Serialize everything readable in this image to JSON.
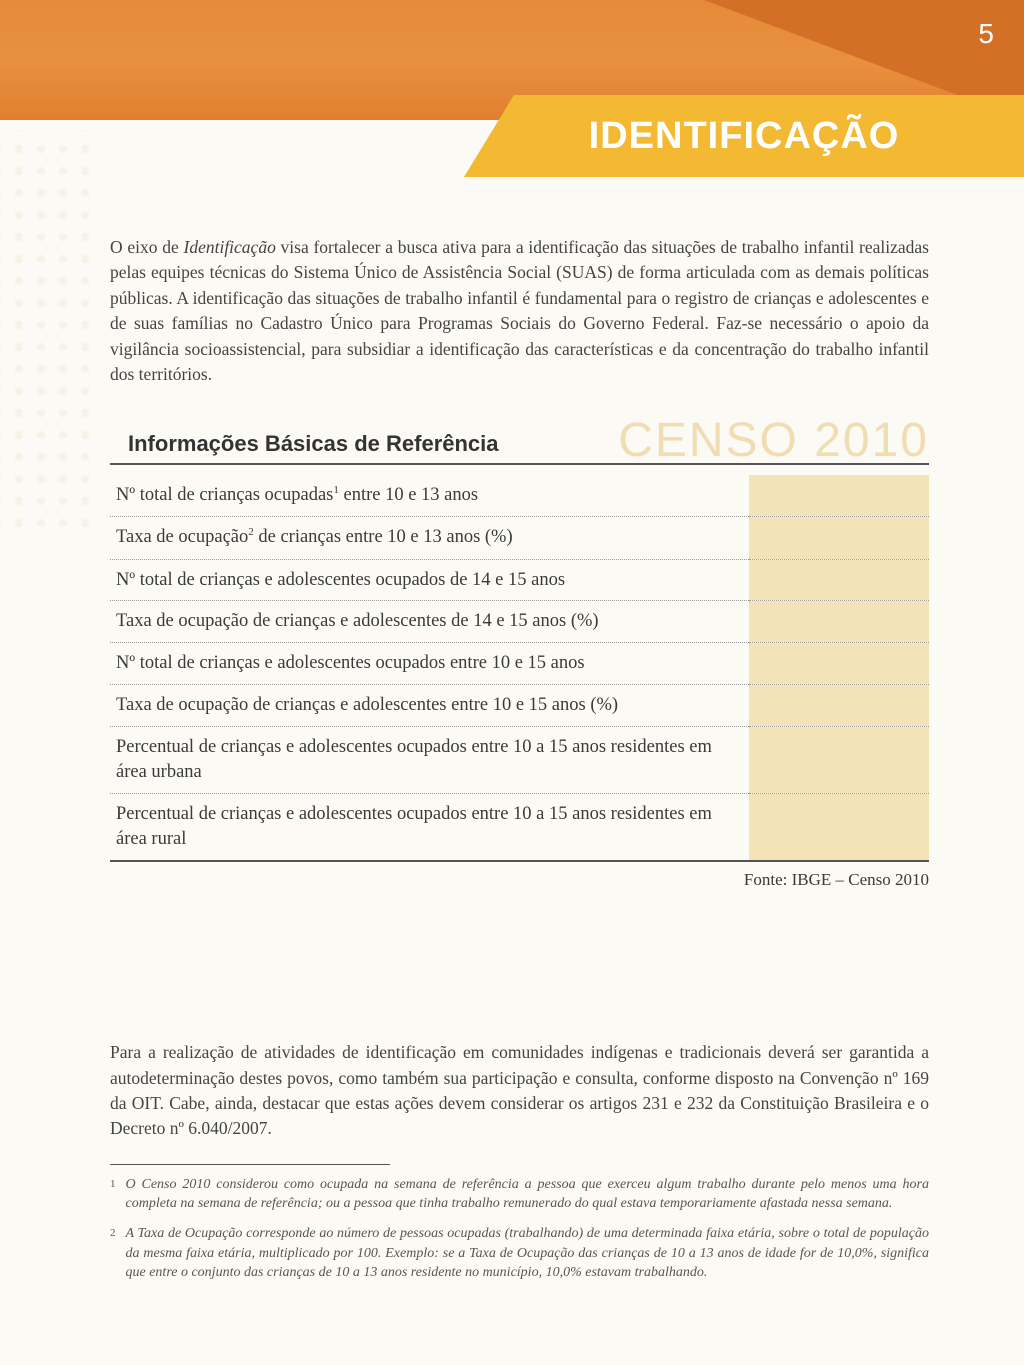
{
  "page_number": "5",
  "header": {
    "title": "IDENTIFICAÇÃO",
    "bg_color": "#e58a3a",
    "triangle_color": "#d46f28",
    "banner_color": "#f3b933",
    "title_color": "#ffffff"
  },
  "intro": {
    "text_pre_italic": "O eixo de ",
    "italic_word": "Identificação",
    "text_post": " visa fortalecer a busca ativa para a identificação das situações de trabalho infantil realizadas pelas equipes técnicas do Sistema Único de Assistência Social (SUAS) de forma articulada com as demais políticas públicas. A identificação das situações de trabalho infantil é fundamental para o registro de crianças e adolescentes e de suas famílias no Cadastro Único para Programas Sociais do Governo Federal. Faz-se necessário o apoio da vigilância socioassistencial, para subsidiar a identificação das características e da concentração do trabalho infantil dos territórios."
  },
  "section": {
    "title": "Informações Básicas de Referência",
    "censo_label": "CENSO 2010",
    "censo_color": "#f0ddb2",
    "value_bg": "#f5e3b8"
  },
  "rows": [
    {
      "label": "Nº total de crianças ocupadas¹ entre 10 e 13 anos",
      "value": ""
    },
    {
      "label": "Taxa de ocupação² de crianças  entre 10 e 13 anos (%)",
      "value": ""
    },
    {
      "label": "Nº total de crianças e adolescentes ocupados de 14 e 15 anos",
      "value": ""
    },
    {
      "label": "Taxa de ocupação de crianças e adolescentes de 14 e 15 anos (%)",
      "value": ""
    },
    {
      "label": "Nº total de crianças e adolescentes ocupados entre 10 e 15 anos",
      "value": ""
    },
    {
      "label": "Taxa de ocupação de crianças e adolescentes entre 10 e 15 anos (%)",
      "value": ""
    },
    {
      "label": "Percentual de crianças e adolescentes ocupados entre 10 a 15 anos residentes em área urbana",
      "value": ""
    },
    {
      "label": "Percentual de crianças e adolescentes ocupados entre 10 a 15 anos residentes em área rural",
      "value": ""
    }
  ],
  "fonte": "Fonte: IBGE – Censo 2010",
  "bottom_paragraph": "Para a realização de atividades de identificação em comunidades indígenas e tradicionais deverá ser garantida a autodeterminação destes povos, como também sua participação e consulta, conforme disposto na Convenção nº 169 da OIT. Cabe, ainda, destacar que estas ações devem considerar os artigos 231 e 232 da Constituição Brasileira e o Decreto nº 6.040/2007.",
  "footnotes": [
    {
      "num": "1",
      "text": "O Censo 2010 considerou como ocupada na semana de referência a pessoa que exerceu algum trabalho durante pelo menos uma hora completa na semana de referência; ou a pessoa que tinha trabalho remunerado do qual estava temporariamente afastada nessa semana."
    },
    {
      "num": "2",
      "text": "A Taxa de Ocupação corresponde ao número de pessoas ocupadas (trabalhando) de uma determinada faixa etária, sobre o total de população da mesma faixa etária, multiplicado por 100. Exemplo: se a Taxa de Ocupação das crianças de 10 a 13 anos de idade for de 10,0%, significa que entre o conjunto das crianças de 10 a 13 anos residente no município, 10,0% estavam trabalhando."
    }
  ],
  "colors": {
    "page_bg": "#fcfaf4",
    "text": "#3a3a3a",
    "border": "#555555",
    "dotted": "#999999"
  }
}
